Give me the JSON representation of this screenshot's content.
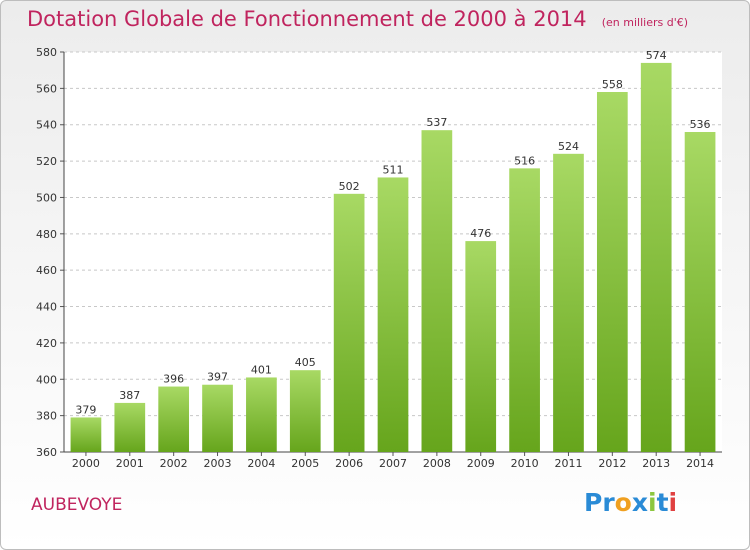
{
  "title": "Dotation Globale de Fonctionnement de 2000 à 2014",
  "subtitle": "(en milliers d'€)",
  "commune": "AUBEVOYE",
  "logo": {
    "text": "Proxiti",
    "letters": [
      {
        "ch": "P",
        "color": "#2a8bd6"
      },
      {
        "ch": "r",
        "color": "#2a8bd6"
      },
      {
        "ch": "o",
        "color": "#f0a020"
      },
      {
        "ch": "x",
        "color": "#2a8bd6"
      },
      {
        "ch": "i",
        "color": "#8cc63f"
      },
      {
        "ch": "t",
        "color": "#2a8bd6"
      },
      {
        "ch": "i",
        "color": "#e04040"
      }
    ]
  },
  "colors": {
    "bar_light": "#a8d964",
    "bar_dark": "#66a51c",
    "title": "#c0245e",
    "grid": "#c8c8c8"
  },
  "chart_data": {
    "type": "bar",
    "categories": [
      "2000",
      "2001",
      "2002",
      "2003",
      "2004",
      "2005",
      "2006",
      "2007",
      "2008",
      "2009",
      "2010",
      "2011",
      "2012",
      "2013",
      "2014"
    ],
    "values": [
      379,
      387,
      396,
      397,
      401,
      405,
      502,
      511,
      537,
      476,
      516,
      524,
      558,
      574,
      536
    ],
    "ylim": [
      360,
      580
    ],
    "yticks": [
      360,
      380,
      400,
      420,
      440,
      460,
      480,
      500,
      520,
      540,
      560,
      580
    ],
    "grid": true,
    "data_labels": true
  }
}
